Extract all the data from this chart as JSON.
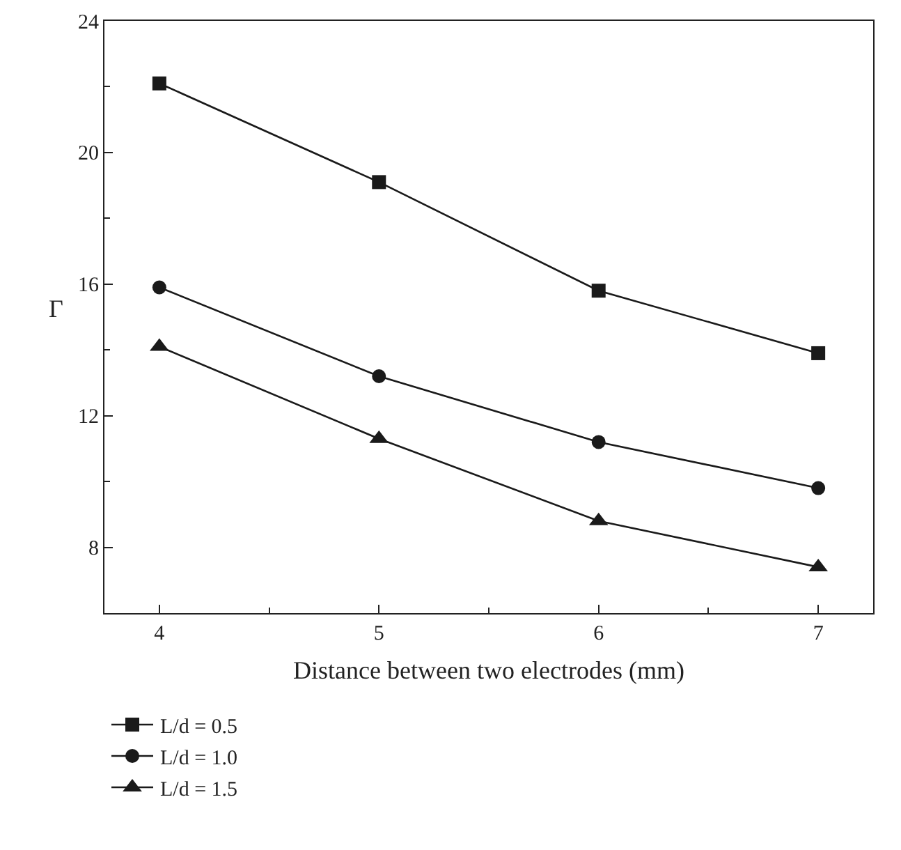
{
  "chart_data": {
    "type": "line",
    "xlabel": "Distance between two electrodes (mm)",
    "ylabel": "Γ",
    "x": [
      4,
      5,
      6,
      7
    ],
    "series": [
      {
        "name": "L/d = 0.5",
        "color": "#1a1a1a",
        "marker": "square",
        "values": [
          22.1,
          19.1,
          15.8,
          13.9
        ]
      },
      {
        "name": "L/d = 1.0",
        "color": "#1a1a1a",
        "marker": "circle",
        "values": [
          15.9,
          13.2,
          11.2,
          9.8
        ]
      },
      {
        "name": "L/d = 1.5",
        "color": "#1a1a1a",
        "marker": "triangle",
        "values": [
          14.1,
          11.3,
          8.8,
          7.4
        ]
      }
    ],
    "xlim": [
      3.75,
      7.25
    ],
    "xticks": [
      4,
      5,
      6,
      7
    ],
    "ylim": [
      6,
      24
    ],
    "yticks": [
      8,
      12,
      16,
      20,
      24
    ],
    "grid": false,
    "legend": "bottom left",
    "line_style": "solid"
  }
}
